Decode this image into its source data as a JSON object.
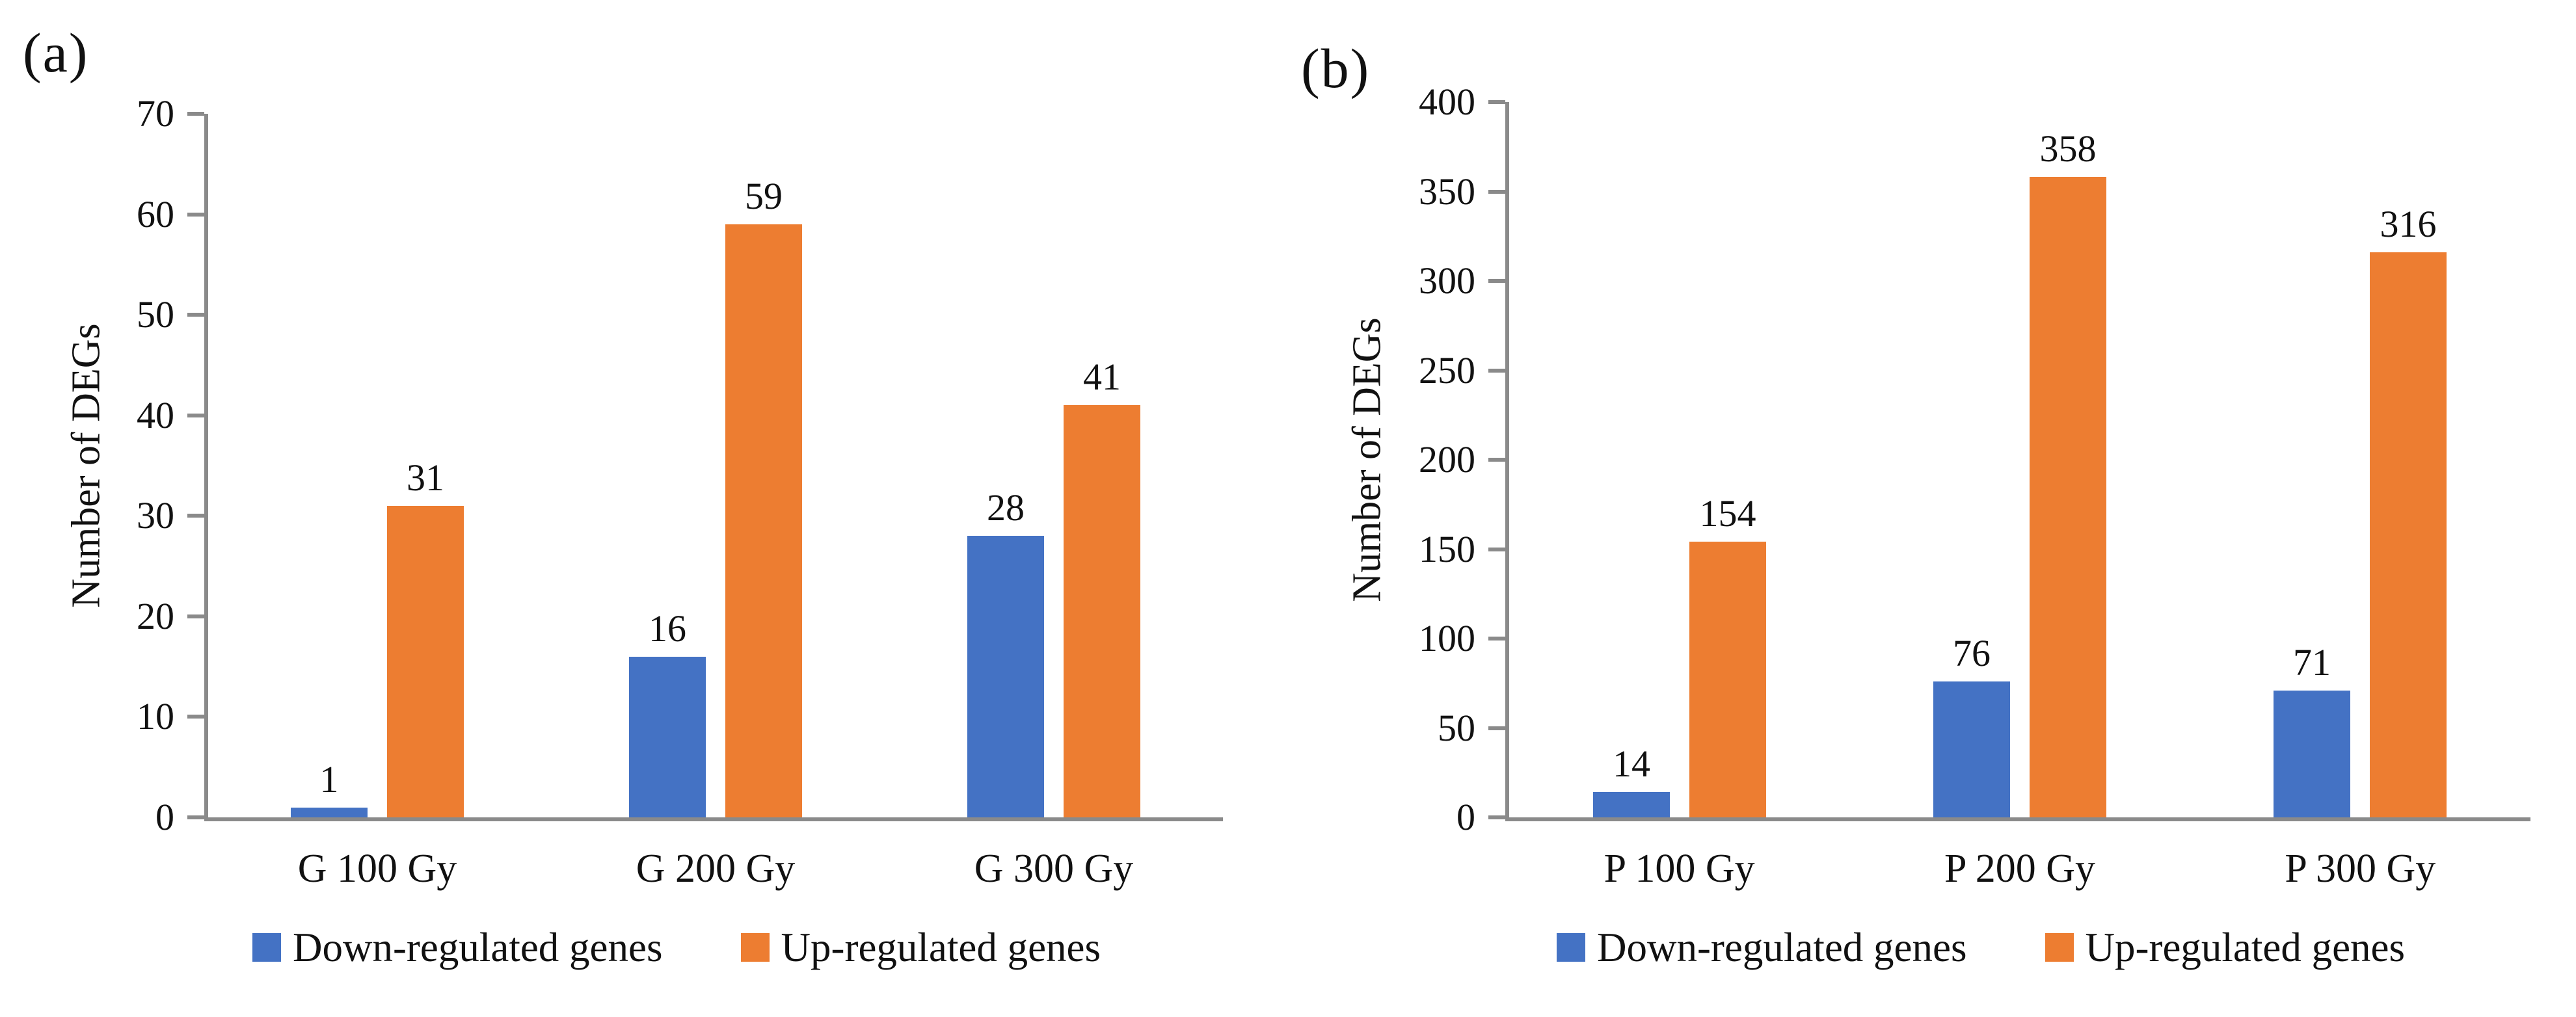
{
  "colors": {
    "down_regulated": "#4472C4",
    "up_regulated": "#ED7D31",
    "axis": "#8A8A8A",
    "text": "#111111",
    "background": "#FFFFFF"
  },
  "chart_data": [
    {
      "type": "bar",
      "panel_label": "(a)",
      "title": "",
      "xlabel": "",
      "ylabel": "Number of DEGs",
      "categories": [
        "G 100 Gy",
        "G 200 Gy",
        "G 300 Gy"
      ],
      "series": [
        {
          "name": "Down-regulated genes",
          "color": "#4472C4",
          "values": [
            1,
            16,
            28
          ]
        },
        {
          "name": "Up-regulated genes",
          "color": "#ED7D31",
          "values": [
            31,
            59,
            41
          ]
        }
      ],
      "ylim": [
        0,
        70
      ],
      "ytick_step": 10,
      "ytick_labels": [
        "0",
        "10",
        "20",
        "30",
        "40",
        "50",
        "60",
        "70"
      ],
      "grid": false,
      "bar_value_labels": true,
      "legend_position": "bottom"
    },
    {
      "type": "bar",
      "panel_label": "(b)",
      "title": "",
      "xlabel": "",
      "ylabel": "Number of DEGs",
      "categories": [
        "P 100 Gy",
        "P 200 Gy",
        "P 300 Gy"
      ],
      "series": [
        {
          "name": "Down-regulated genes",
          "color": "#4472C4",
          "values": [
            14,
            76,
            71
          ]
        },
        {
          "name": "Up-regulated genes",
          "color": "#ED7D31",
          "values": [
            154,
            358,
            316
          ]
        }
      ],
      "ylim": [
        0,
        400
      ],
      "ytick_step": 50,
      "ytick_labels": [
        "0",
        "50",
        "100",
        "150",
        "200",
        "250",
        "300",
        "350",
        "400"
      ],
      "grid": false,
      "bar_value_labels": true,
      "legend_position": "bottom"
    }
  ]
}
